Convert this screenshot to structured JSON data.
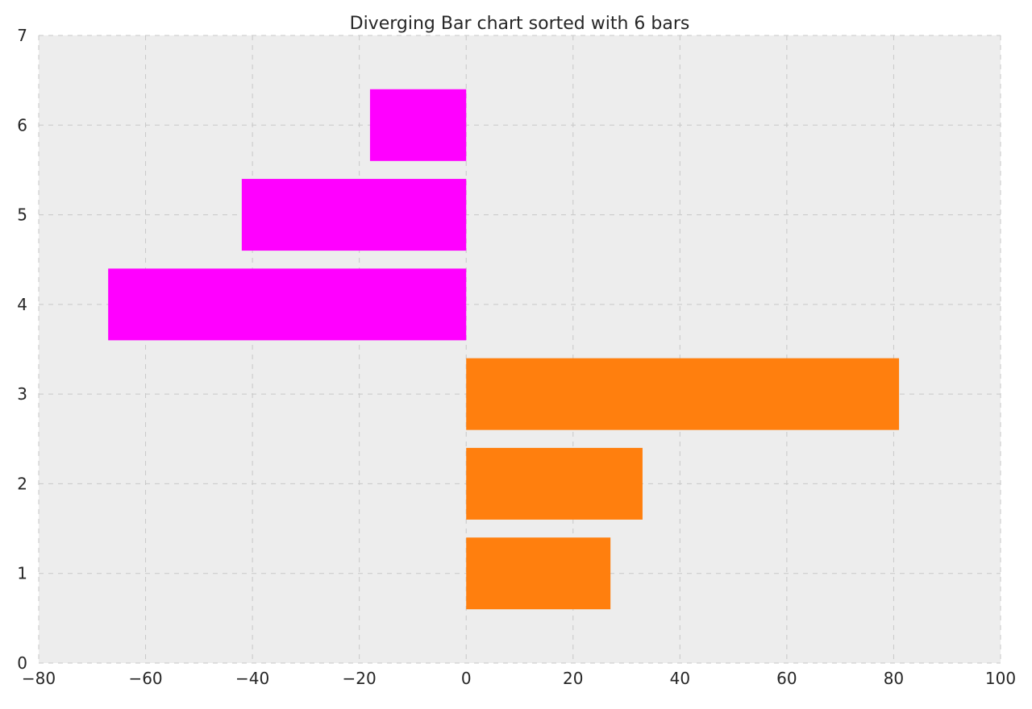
{
  "chart_data": {
    "type": "bar",
    "orientation": "horizontal",
    "title": "Diverging Bar chart sorted with 6 bars",
    "xlabel": "",
    "ylabel": "",
    "xlim": [
      -80,
      100
    ],
    "ylim": [
      0,
      7
    ],
    "xticks": [
      -80,
      -60,
      -40,
      -20,
      0,
      20,
      40,
      60,
      80,
      100
    ],
    "xtick_labels": [
      "−80",
      "−60",
      "−40",
      "−20",
      "0",
      "20",
      "40",
      "60",
      "80",
      "100"
    ],
    "yticks": [
      0,
      1,
      2,
      3,
      4,
      5,
      6,
      7
    ],
    "ytick_labels": [
      "0",
      "1",
      "2",
      "3",
      "4",
      "5",
      "6",
      "7"
    ],
    "grid": true,
    "legend": "none",
    "bar_height": 0.8,
    "bars": [
      {
        "y": 1,
        "value": 27,
        "color": "#ff7f0e"
      },
      {
        "y": 2,
        "value": 33,
        "color": "#ff7f0e"
      },
      {
        "y": 3,
        "value": 81,
        "color": "#ff7f0e"
      },
      {
        "y": 4,
        "value": -67,
        "color": "#ff00ff"
      },
      {
        "y": 5,
        "value": -42,
        "color": "#ff00ff"
      },
      {
        "y": 6,
        "value": -18,
        "color": "#ff00ff"
      }
    ],
    "colors": {
      "positive": "#ff7f0e",
      "negative": "#ff00ff",
      "plot_background": "#ededed",
      "grid": "#c8c8c8"
    }
  }
}
